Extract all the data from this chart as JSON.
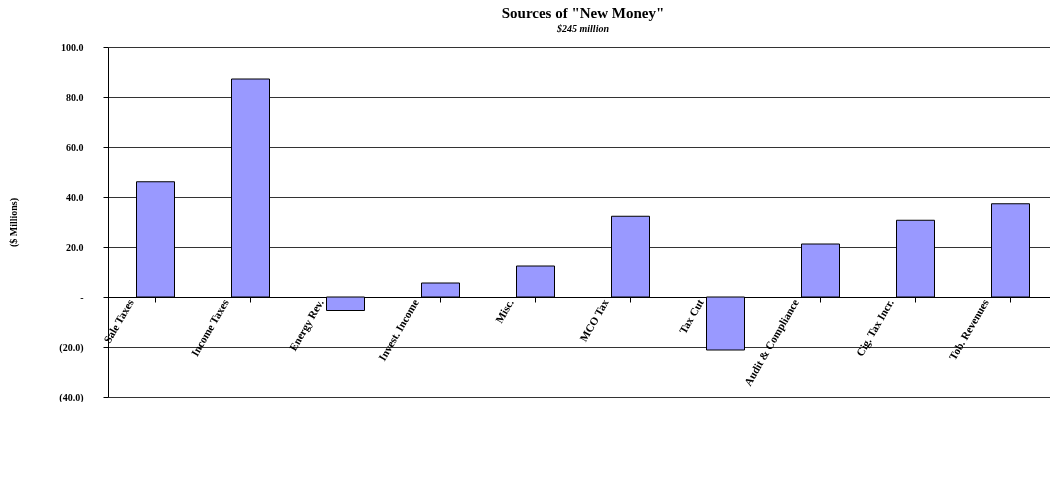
{
  "chart_data": {
    "type": "bar",
    "title": "Sources of \"New Money\"",
    "subtitle": "$245 million",
    "ylabel": "($ Millions)",
    "categories": [
      "Sale Taxes",
      "Income Taxes",
      "Energy Rev.",
      "Invest. Income",
      "Misc.",
      "MCO Tax",
      "Tax Cut",
      "Audit & Compliance",
      "Cig. Tax Incr.",
      "Tob. Revenues"
    ],
    "values": [
      46.1,
      87.2,
      -5.4,
      5.6,
      12.4,
      32.3,
      -21.2,
      21.2,
      30.7,
      37.3
    ],
    "color": "#9999ff",
    "ylim": [
      -40,
      100
    ],
    "yticks": [
      {
        "value": -40,
        "label": "(40.0)"
      },
      {
        "value": -20,
        "label": "(20.0)"
      },
      {
        "value": 0,
        "label": "-"
      },
      {
        "value": 20,
        "label": "20.0"
      },
      {
        "value": 40,
        "label": "40.0"
      },
      {
        "value": 60,
        "label": "60.0"
      },
      {
        "value": 80,
        "label": "80.0"
      },
      {
        "value": 100,
        "label": "100.0"
      }
    ],
    "grid": "y"
  }
}
